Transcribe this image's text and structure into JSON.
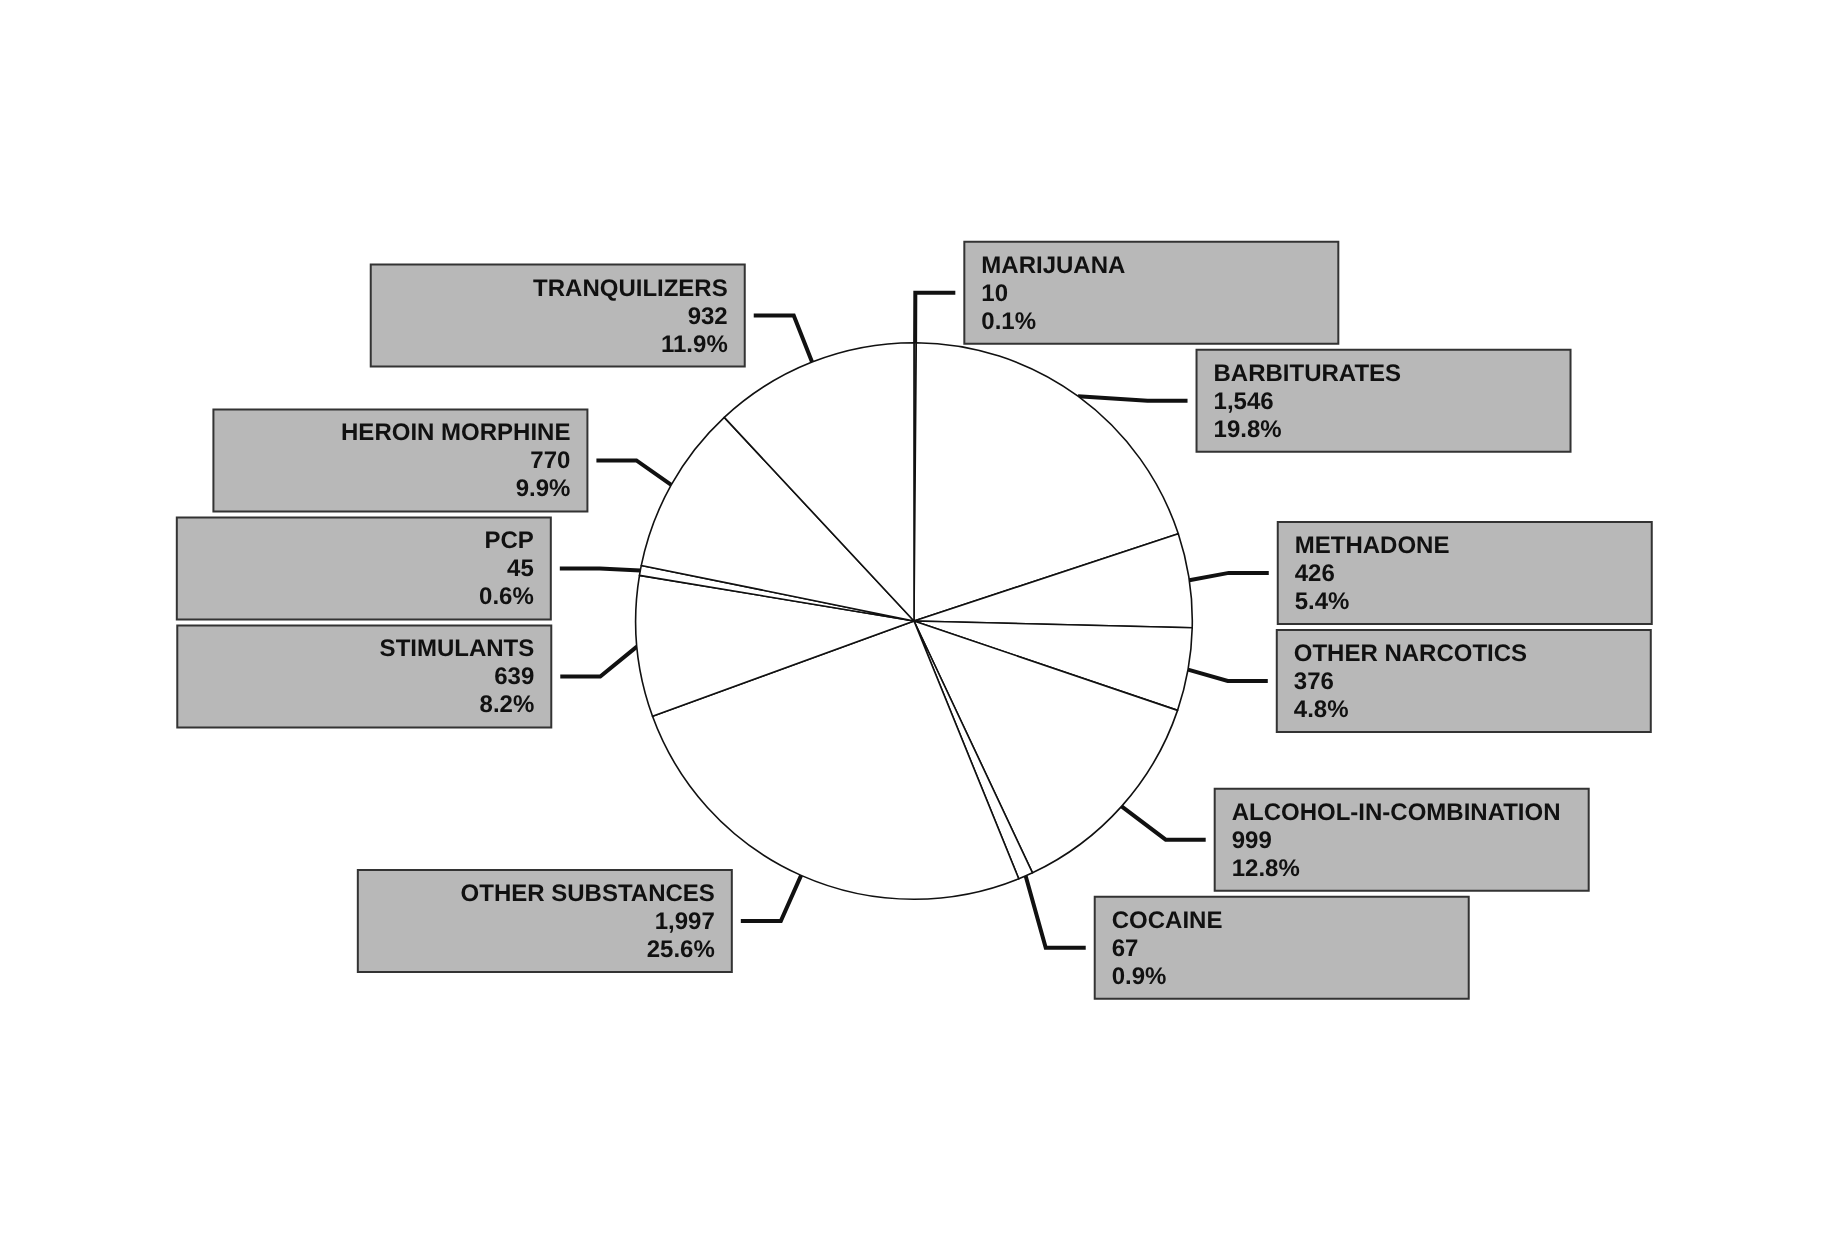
{
  "chart_data": {
    "type": "pie",
    "categories": [
      "MARIJUANA",
      "BARBITURATES",
      "METHADONE",
      "OTHER NARCOTICS",
      "ALCOHOL-IN-COMBINATION",
      "COCAINE",
      "OTHER SUBSTANCES",
      "STIMULANTS",
      "PCP",
      "HEROIN MORPHINE",
      "TRANQUILIZERS"
    ],
    "values": [
      10,
      1546,
      426,
      376,
      999,
      67,
      1997,
      639,
      45,
      770,
      932
    ],
    "value_labels": [
      "10\n0.1%",
      "1,546\n19.8%",
      "426\n5.4%",
      "376\n4.8%",
      "999\n12.8%",
      "67\n0.9%",
      "1,997\n25.6%",
      "639\n8.2%",
      "45\n0.6%",
      "770\n9.9%",
      "932\n11.9%"
    ],
    "colors": [
      "#ffffff",
      "#ffffff",
      "#ffffff",
      "#ffffff",
      "#ffffff",
      "#ffffff",
      "#ffffff",
      "#ffffff",
      "#ffffff",
      "#ffffff",
      "#ffffff"
    ],
    "legend": false
  }
}
